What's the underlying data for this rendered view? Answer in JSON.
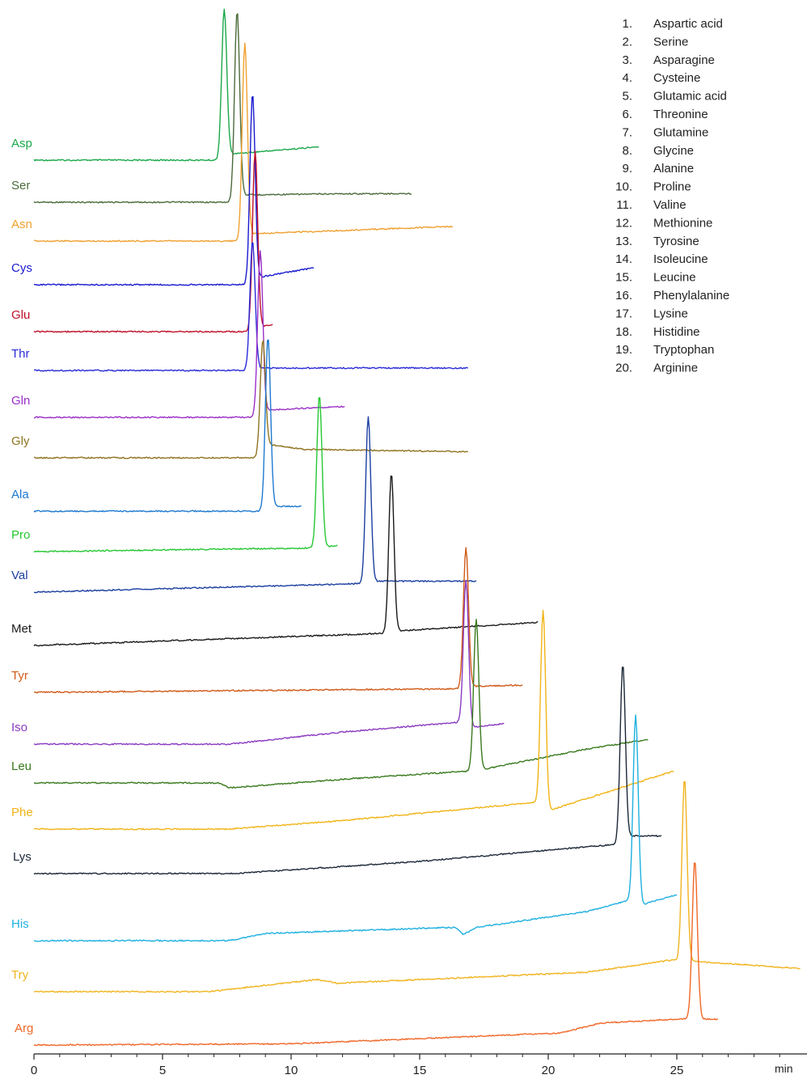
{
  "chart_data": {
    "type": "line",
    "title": "",
    "xlabel": "min",
    "ylabel": "",
    "xlim": [
      0,
      30
    ],
    "x_ticks": [
      0,
      5,
      10,
      15,
      20,
      25
    ],
    "grid": false,
    "legend_position": "top-right",
    "legend": [
      {
        "num": "1.",
        "name": "Aspartic acid"
      },
      {
        "num": "2.",
        "name": "Serine"
      },
      {
        "num": "3.",
        "name": "Asparagine"
      },
      {
        "num": "4.",
        "name": "Cysteine"
      },
      {
        "num": "5.",
        "name": "Glutamic acid"
      },
      {
        "num": "6.",
        "name": "Threonine"
      },
      {
        "num": "7.",
        "name": "Glutamine"
      },
      {
        "num": "8.",
        "name": "Glycine"
      },
      {
        "num": "9.",
        "name": "Alanine"
      },
      {
        "num": "10.",
        "name": "Proline"
      },
      {
        "num": "11.",
        "name": "Valine"
      },
      {
        "num": "12.",
        "name": "Methionine"
      },
      {
        "num": "13.",
        "name": "Tyrosine"
      },
      {
        "num": "14.",
        "name": "Isoleucine"
      },
      {
        "num": "15.",
        "name": "Leucine"
      },
      {
        "num": "16.",
        "name": "Phenylalanine"
      },
      {
        "num": "17.",
        "name": "Lysine"
      },
      {
        "num": "18.",
        "name": "Histidine"
      },
      {
        "num": "19.",
        "name": "Tryptophan"
      },
      {
        "num": "20.",
        "name": "Arginine"
      }
    ],
    "series": [
      {
        "name": "Asp",
        "color": "#1aa84a",
        "x_end": 11.1,
        "peak_time": 7.4,
        "drift": [
          [
            0,
            0
          ],
          [
            7.4,
            0
          ],
          [
            7.6,
            0.25
          ],
          [
            11.1,
            0.55
          ]
        ]
      },
      {
        "name": "Ser",
        "color": "#4b6b3a",
        "x_end": 14.7,
        "peak_time": 7.9,
        "drift": [
          [
            0,
            0
          ],
          [
            7.8,
            0
          ],
          [
            8.1,
            0.3
          ],
          [
            12,
            0.35
          ],
          [
            14.7,
            0.35
          ]
        ]
      },
      {
        "name": "Asn",
        "color": "#f0a030",
        "x_end": 16.3,
        "peak_time": 8.2,
        "drift": [
          [
            0,
            0
          ],
          [
            8.0,
            0
          ],
          [
            8.4,
            0.3
          ],
          [
            16.3,
            0.6
          ]
        ]
      },
      {
        "name": "Cys",
        "color": "#1a1ad0",
        "x_end": 10.9,
        "peak_time": 8.5,
        "drift": [
          [
            0,
            0
          ],
          [
            8.3,
            0
          ],
          [
            8.7,
            0.3
          ],
          [
            10.9,
            0.7
          ]
        ]
      },
      {
        "name": "Glu",
        "color": "#c0102a",
        "x_end": 9.3,
        "peak_time": 8.6,
        "drift": [
          [
            0,
            0
          ],
          [
            8.4,
            0
          ],
          [
            8.8,
            0.2
          ],
          [
            9.3,
            0.3
          ]
        ]
      },
      {
        "name": "Thr",
        "color": "#2a2ad8",
        "x_end": 16.9,
        "peak_time": 8.5,
        "drift": [
          [
            0,
            0
          ],
          [
            8.4,
            0
          ],
          [
            8.7,
            0.1
          ],
          [
            16.9,
            0.1
          ]
        ]
      },
      {
        "name": "Gln",
        "color": "#9b30c8",
        "x_end": 12.1,
        "peak_time": 8.8,
        "drift": [
          [
            0,
            0
          ],
          [
            8.6,
            0
          ],
          [
            9.0,
            0.3
          ],
          [
            12.1,
            0.45
          ]
        ]
      },
      {
        "name": "Gly",
        "color": "#8f7420",
        "x_end": 16.9,
        "peak_time": 8.9,
        "drift": [
          [
            0,
            0
          ],
          [
            8.7,
            0
          ],
          [
            9.1,
            0.55
          ],
          [
            10.5,
            0.35
          ],
          [
            16.9,
            0.25
          ]
        ]
      },
      {
        "name": "Ala",
        "color": "#1e7ad0",
        "x_end": 10.4,
        "peak_time": 9.1,
        "drift": [
          [
            0,
            0
          ],
          [
            9.0,
            0
          ],
          [
            9.3,
            0.2
          ],
          [
            10.4,
            0.2
          ]
        ]
      },
      {
        "name": "Pro",
        "color": "#27c733",
        "x_end": 11.8,
        "peak_time": 11.1,
        "drift": [
          [
            0,
            0
          ],
          [
            10.8,
            0.15
          ],
          [
            11.3,
            0.2
          ],
          [
            11.8,
            0.25
          ]
        ]
      },
      {
        "name": "Val",
        "color": "#1c3fa0",
        "x_end": 17.2,
        "peak_time": 13.0,
        "drift": [
          [
            0,
            0
          ],
          [
            12.8,
            0.35
          ],
          [
            13.3,
            0.45
          ],
          [
            17.2,
            0.45
          ]
        ]
      },
      {
        "name": "Met",
        "color": "#1a1a1a",
        "x_end": 19.6,
        "peak_time": 13.9,
        "drift": [
          [
            0,
            0
          ],
          [
            13.6,
            0.5
          ],
          [
            14.2,
            0.6
          ],
          [
            19.6,
            0.95
          ]
        ]
      },
      {
        "name": "Tyr",
        "color": "#d05a18",
        "x_end": 19.0,
        "peak_time": 16.8,
        "drift": [
          [
            0,
            0
          ],
          [
            16.6,
            0.15
          ],
          [
            17.1,
            0.25
          ],
          [
            19.0,
            0.3
          ]
        ]
      },
      {
        "name": "Iso",
        "color": "#8a3ac0",
        "x_end": 18.3,
        "peak_time": 16.8,
        "drift": [
          [
            0,
            0
          ],
          [
            7.6,
            0
          ],
          [
            12,
            0.5
          ],
          [
            16.5,
            0.9
          ],
          [
            17.1,
            0.7
          ],
          [
            18.3,
            0.85
          ]
        ]
      },
      {
        "name": "Leu",
        "color": "#3a7a1e",
        "x_end": 23.9,
        "peak_time": 17.2,
        "drift": [
          [
            0,
            0
          ],
          [
            7.2,
            0
          ],
          [
            7.6,
            -0.2
          ],
          [
            12,
            0.15
          ],
          [
            17.0,
            0.5
          ],
          [
            17.4,
            0.55
          ],
          [
            21.5,
            1.4
          ],
          [
            23.9,
            1.8
          ]
        ]
      },
      {
        "name": "Phe",
        "color": "#f0b416",
        "x_end": 24.9,
        "peak_time": 19.8,
        "drift": [
          [
            0,
            0
          ],
          [
            7.6,
            0
          ],
          [
            12,
            0.35
          ],
          [
            19.5,
            1.1
          ],
          [
            20.0,
            0.75
          ],
          [
            24.9,
            2.4
          ]
        ]
      },
      {
        "name": "Lys",
        "color": "#1c2838",
        "x_end": 24.4,
        "peak_time": 22.9,
        "drift": [
          [
            0,
            0
          ],
          [
            7.8,
            0
          ],
          [
            15,
            0.5
          ],
          [
            21.5,
            1.1
          ],
          [
            22.6,
            1.2
          ],
          [
            23.2,
            1.55
          ],
          [
            24.4,
            1.55
          ]
        ]
      },
      {
        "name": "His",
        "color": "#1eb0e0",
        "x_end": 25.0,
        "peak_time": 23.4,
        "drift": [
          [
            0,
            0
          ],
          [
            7.6,
            0
          ],
          [
            9,
            0.3
          ],
          [
            16.4,
            0.55
          ],
          [
            16.7,
            0.25
          ],
          [
            17.2,
            0.55
          ],
          [
            21.5,
            1.2
          ],
          [
            23.1,
            1.65
          ],
          [
            23.7,
            1.5
          ],
          [
            25.0,
            1.9
          ]
        ]
      },
      {
        "name": "Try",
        "color": "#f0b420",
        "x_end": 29.8,
        "peak_time": 25.3,
        "drift": [
          [
            0,
            0
          ],
          [
            6.8,
            0
          ],
          [
            11,
            0.5
          ],
          [
            11.8,
            0.35
          ],
          [
            21.5,
            0.8
          ],
          [
            24.8,
            1.3
          ],
          [
            25.7,
            1.25
          ],
          [
            29.8,
            0.95
          ]
        ]
      },
      {
        "name": "Arg",
        "color": "#f06828",
        "x_end": 26.6,
        "peak_time": 25.7,
        "drift": [
          [
            0,
            0
          ],
          [
            10,
            0.05
          ],
          [
            20.5,
            0.5
          ],
          [
            22,
            0.9
          ],
          [
            25.5,
            1.1
          ],
          [
            26.6,
            1.05
          ]
        ]
      }
    ]
  }
}
